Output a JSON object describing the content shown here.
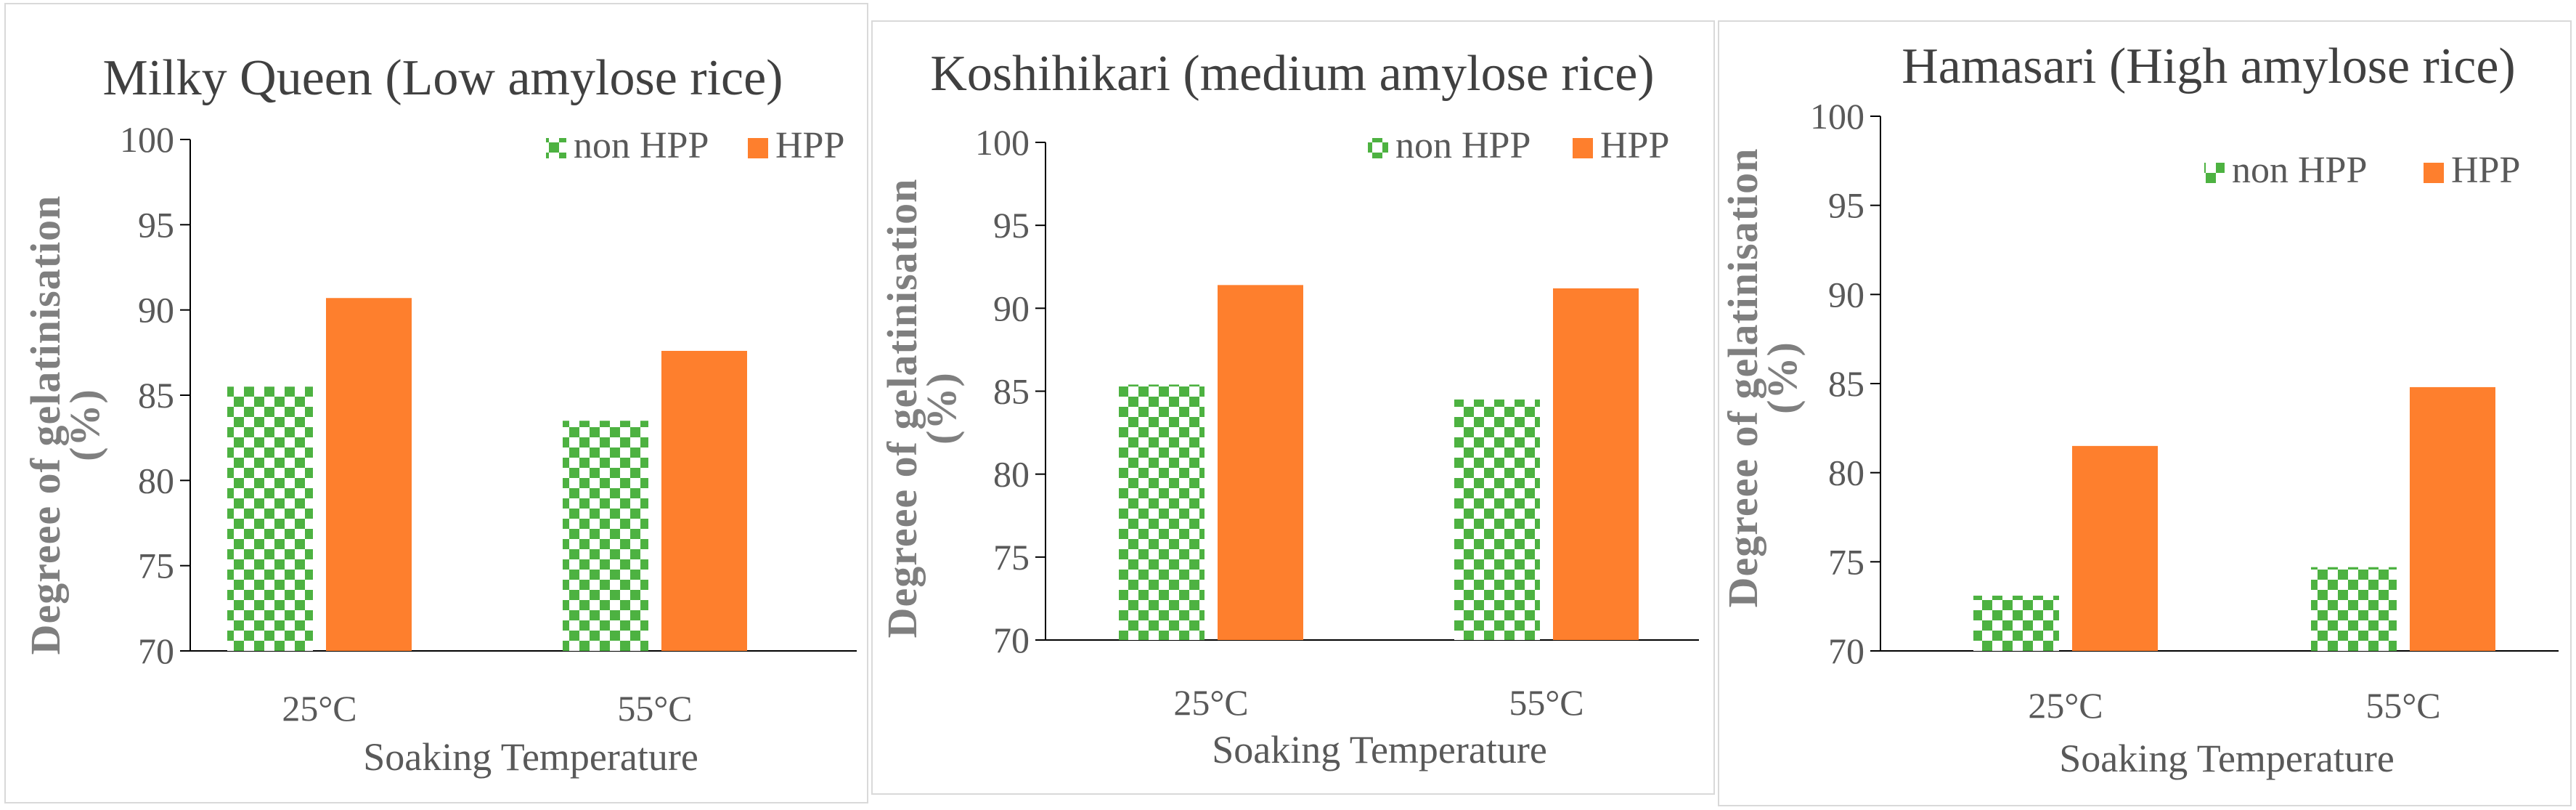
{
  "colors": {
    "non_hpp": "#4db241",
    "hpp": "#fe7f2d",
    "title": "#404040",
    "axis_title": "#7f7f7f"
  },
  "legend_labels": [
    "non HPP",
    "HPP"
  ],
  "chart_data": [
    {
      "type": "bar",
      "title": "Milky Queen (Low amylose rice)",
      "xlabel": "Soaking Temperature",
      "ylabel_lines": [
        "Degreee of gelatinisation",
        "(%)"
      ],
      "categories": [
        "25°C",
        "55°C"
      ],
      "series": [
        {
          "name": "non HPP",
          "values": [
            85.5,
            83.5
          ],
          "pattern": "checker"
        },
        {
          "name": "HPP",
          "values": [
            90.7,
            87.6
          ],
          "pattern": "solid"
        }
      ],
      "yticks": [
        70,
        75,
        80,
        85,
        90,
        95,
        100
      ],
      "ylim": [
        70,
        100
      ],
      "grid": false,
      "legend_position": "top-right"
    },
    {
      "type": "bar",
      "title": "Koshihikari (medium amylose rice)",
      "xlabel": "Soaking Temperature",
      "ylabel_lines": [
        "Degreee of gelatinisation",
        "(%)"
      ],
      "categories": [
        "25°C",
        "55°C"
      ],
      "series": [
        {
          "name": "non HPP",
          "values": [
            85.4,
            84.5
          ],
          "pattern": "checker"
        },
        {
          "name": "HPP",
          "values": [
            91.4,
            91.2
          ],
          "pattern": "solid"
        }
      ],
      "yticks": [
        70,
        75,
        80,
        85,
        90,
        95,
        100
      ],
      "ylim": [
        70,
        100
      ],
      "grid": false,
      "legend_position": "top-right"
    },
    {
      "type": "bar",
      "title": "Hamasari (High amylose rice)",
      "xlabel": "Soaking Temperature",
      "ylabel_lines": [
        "Degreee of gelatinisation",
        "(%)"
      ],
      "categories": [
        "25°C",
        "55°C"
      ],
      "series": [
        {
          "name": "non HPP",
          "values": [
            73.1,
            74.7
          ],
          "pattern": "checker"
        },
        {
          "name": "HPP",
          "values": [
            81.5,
            84.8
          ],
          "pattern": "solid"
        }
      ],
      "yticks": [
        70,
        75,
        80,
        85,
        90,
        95,
        100
      ],
      "ylim": [
        70,
        100
      ],
      "grid": false,
      "legend_position": "top-right"
    }
  ]
}
